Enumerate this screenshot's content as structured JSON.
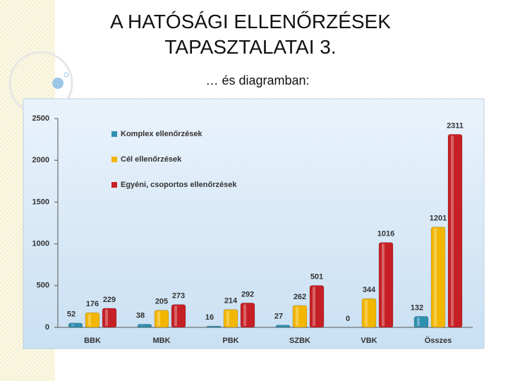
{
  "slide": {
    "title": "A HATÓSÁGI ELLENŐRZÉSEK TAPASZTALATAI 3.",
    "subtitle": "… és diagramban:"
  },
  "chart_data": {
    "type": "bar",
    "categories": [
      "BBK",
      "MBK",
      "PBK",
      "SZBK",
      "VBK",
      "Összes"
    ],
    "series": [
      {
        "name": "Komplex ellenőrzések",
        "color": "#2f8fae",
        "values": [
          52,
          38,
          16,
          27,
          0,
          132
        ]
      },
      {
        "name": "Cél ellenőrzések",
        "color": "#f2b600",
        "values": [
          176,
          205,
          214,
          262,
          344,
          1201
        ]
      },
      {
        "name": "Egyéni, csoportos ellenőrzések",
        "color": "#c62026",
        "values": [
          229,
          273,
          292,
          501,
          1016,
          2311
        ]
      }
    ],
    "ylim": [
      0,
      2500
    ],
    "yticks": [
      0,
      500,
      1000,
      1500,
      2000,
      2500
    ],
    "grid": false,
    "legend": "upper left"
  }
}
